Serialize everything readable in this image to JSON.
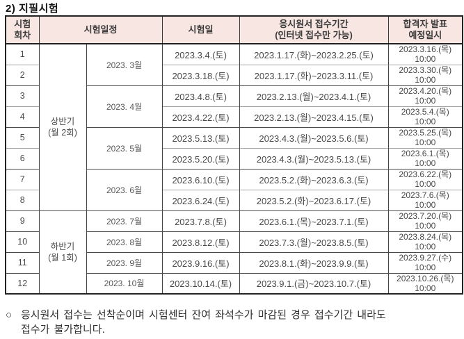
{
  "title": "2) 지필시험",
  "table": {
    "headers": {
      "round": "시험\n회차",
      "schedule": "시험일정",
      "exam_date": "시험일",
      "application_period": "응시원서 접수기간\n(인터넷 접수만 가능)",
      "announcement": "합격자 발표\n예정일시"
    },
    "half_groups": [
      {
        "label": "상반기\n(월 2회)",
        "rows": 8
      },
      {
        "label": "하반기\n(월 1회)",
        "rows": 4
      }
    ],
    "month_groups": [
      {
        "label": "2023. 3월",
        "rows": 2
      },
      {
        "label": "2023. 4월",
        "rows": 2
      },
      {
        "label": "2023. 5월",
        "rows": 2
      },
      {
        "label": "2023. 6월",
        "rows": 2
      },
      {
        "label": "2023. 7월",
        "rows": 1
      },
      {
        "label": "2023. 8월",
        "rows": 1
      },
      {
        "label": "2023. 9월",
        "rows": 1
      },
      {
        "label": "2023. 10월",
        "rows": 1
      }
    ],
    "rows": [
      {
        "round": "1",
        "exam_date": "2023.3.4.(토)",
        "period": "2023.1.17.(화)~2023.2.25.(토)",
        "announce_date": "2023.3.16.(목)",
        "announce_time": "10:00"
      },
      {
        "round": "2",
        "exam_date": "2023.3.18.(토)",
        "period": "2023.1.17.(화)~2023.3.11.(토)",
        "announce_date": "2023.3.30.(목)",
        "announce_time": "10:00"
      },
      {
        "round": "3",
        "exam_date": "2023.4.8.(토)",
        "period": "2023.2.13.(월)~2023.4.1.(토)",
        "announce_date": "2023.4.20.(목)",
        "announce_time": "10:00"
      },
      {
        "round": "4",
        "exam_date": "2023.4.22.(토)",
        "period": "2023.2.13.(월)~2023.4.15.(토)",
        "announce_date": "2023.5.4.(목)",
        "announce_time": "10:00"
      },
      {
        "round": "5",
        "exam_date": "2023.5.13.(토)",
        "period": "2023.4.3.(월)~2023.5.6.(토)",
        "announce_date": "2023.5.25.(목)",
        "announce_time": "10:00"
      },
      {
        "round": "6",
        "exam_date": "2023.5.20.(토)",
        "period": "2023.4.3.(월)~2023.5.13.(토)",
        "announce_date": "2023.6.1.(목)",
        "announce_time": "10:00"
      },
      {
        "round": "7",
        "exam_date": "2023.6.10.(토)",
        "period": "2023.5.2.(화)~2023.6.3.(토)",
        "announce_date": "2023.6.22.(목)",
        "announce_time": "10:00"
      },
      {
        "round": "8",
        "exam_date": "2023.6.24.(토)",
        "period": "2023.5.2.(화)~2023.6.17.(토)",
        "announce_date": "2023.7.6.(목)",
        "announce_time": "10:00"
      },
      {
        "round": "9",
        "exam_date": "2023.7.8.(토)",
        "period": "2023.6.1.(목)~2023.7.1.(토)",
        "announce_date": "2023.7.20.(목)",
        "announce_time": "10:00"
      },
      {
        "round": "10",
        "exam_date": "2023.8.12.(토)",
        "period": "2023.7.3.(월)~2023.8.5.(토)",
        "announce_date": "2023.8.24.(목)",
        "announce_time": "10:00"
      },
      {
        "round": "11",
        "exam_date": "2023.9.16.(토)",
        "period": "2023.8.1.(화)~2023.9.9.(토)",
        "announce_date": "2023.9.27.(수)",
        "announce_time": "10:00"
      },
      {
        "round": "12",
        "exam_date": "2023.10.14.(토)",
        "period": "2023.9.1.(금)~2023.10.7.(토)",
        "announce_date": "2023.10.26.(목)",
        "announce_time": "10:00"
      }
    ]
  },
  "footnote": {
    "bullet": "○",
    "text": "응시원서 접수는 선착순이며 시험센터 잔여 좌석수가 마감된 경우 접수기간 내라도\n접수가 불가합니다."
  },
  "colors": {
    "header_bg": "#f8e6e2",
    "outer_border": "#222222",
    "inner_vertical_line": "#454545",
    "inner_horizontal_line": "#a0a0a0",
    "body_text": "#484848"
  }
}
